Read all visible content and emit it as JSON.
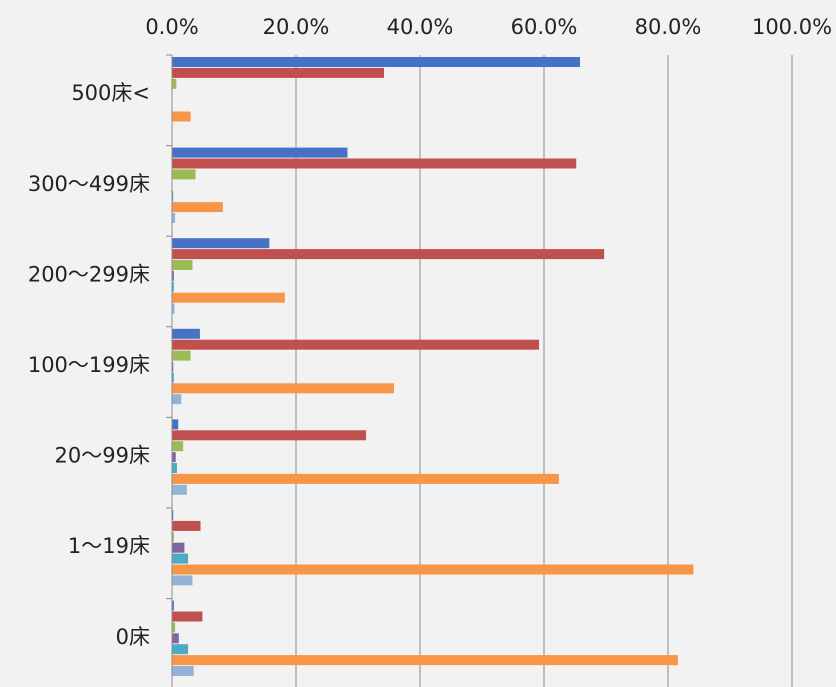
{
  "chart_data": {
    "type": "bar",
    "orientation": "horizontal",
    "title": "",
    "xlabel": "",
    "ylabel": "",
    "xlim": [
      0,
      100
    ],
    "x_tick_labels": [
      "0.0%",
      "20.0%",
      "40.0%",
      "60.0%",
      "80.0%",
      "100.0%"
    ],
    "grid": true,
    "legend": "none",
    "categories": [
      "500床<",
      "300～499床",
      "200～299床",
      "100～199床",
      "20～99床",
      "1～19床",
      "0床"
    ],
    "series": [
      {
        "color": "#4472c4",
        "values": [
          65.8,
          28.3,
          15.7,
          4.5,
          1.0,
          0.2,
          0.3
        ]
      },
      {
        "color": "#c0504d",
        "values": [
          34.2,
          65.2,
          69.7,
          59.2,
          31.3,
          4.6,
          4.9
        ]
      },
      {
        "color": "#9bbb59",
        "values": [
          0.7,
          3.8,
          3.3,
          3.0,
          1.8,
          0.3,
          0.5
        ]
      },
      {
        "color": "#8064a2",
        "values": [
          0.0,
          0.0,
          0.3,
          0.2,
          0.6,
          2.0,
          1.1
        ]
      },
      {
        "color": "#4bacc6",
        "values": [
          0.0,
          0.2,
          0.3,
          0.3,
          0.8,
          2.6,
          2.6
        ]
      },
      {
        "color": "#f79646",
        "values": [
          3.0,
          8.2,
          18.2,
          35.8,
          62.4,
          84.1,
          81.6
        ]
      },
      {
        "color": "#95b3d7",
        "values": [
          0.0,
          0.5,
          0.4,
          1.5,
          2.4,
          3.3,
          3.5
        ]
      }
    ]
  }
}
